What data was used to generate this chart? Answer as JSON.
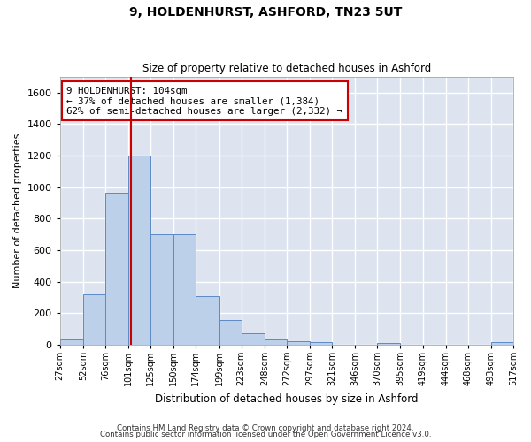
{
  "title1": "9, HOLDENHURST, ASHFORD, TN23 5UT",
  "title2": "Size of property relative to detached houses in Ashford",
  "xlabel": "Distribution of detached houses by size in Ashford",
  "ylabel": "Number of detached properties",
  "footnote1": "Contains HM Land Registry data © Crown copyright and database right 2024.",
  "footnote2": "Contains public sector information licensed under the Open Government Licence v3.0.",
  "annotation_line1": "9 HOLDENHURST: 104sqm",
  "annotation_line2": "← 37% of detached houses are smaller (1,384)",
  "annotation_line3": "62% of semi-detached houses are larger (2,332) →",
  "bar_color": "#bdd0e9",
  "bar_edge_color": "#5b8ac5",
  "vline_color": "#cc0000",
  "annotation_box_color": "#cc0000",
  "background_color": "#dde4ef",
  "grid_color": "#ffffff",
  "bins": [
    27,
    52,
    76,
    101,
    125,
    150,
    174,
    199,
    223,
    248,
    272,
    297,
    321,
    346,
    370,
    395,
    419,
    444,
    468,
    493,
    517
  ],
  "counts": [
    30,
    320,
    965,
    1200,
    700,
    700,
    305,
    155,
    70,
    30,
    20,
    15,
    0,
    0,
    10,
    0,
    0,
    0,
    0,
    15
  ],
  "vline_x": 104,
  "ylim": [
    0,
    1700
  ],
  "yticks": [
    0,
    200,
    400,
    600,
    800,
    1000,
    1200,
    1400,
    1600
  ]
}
